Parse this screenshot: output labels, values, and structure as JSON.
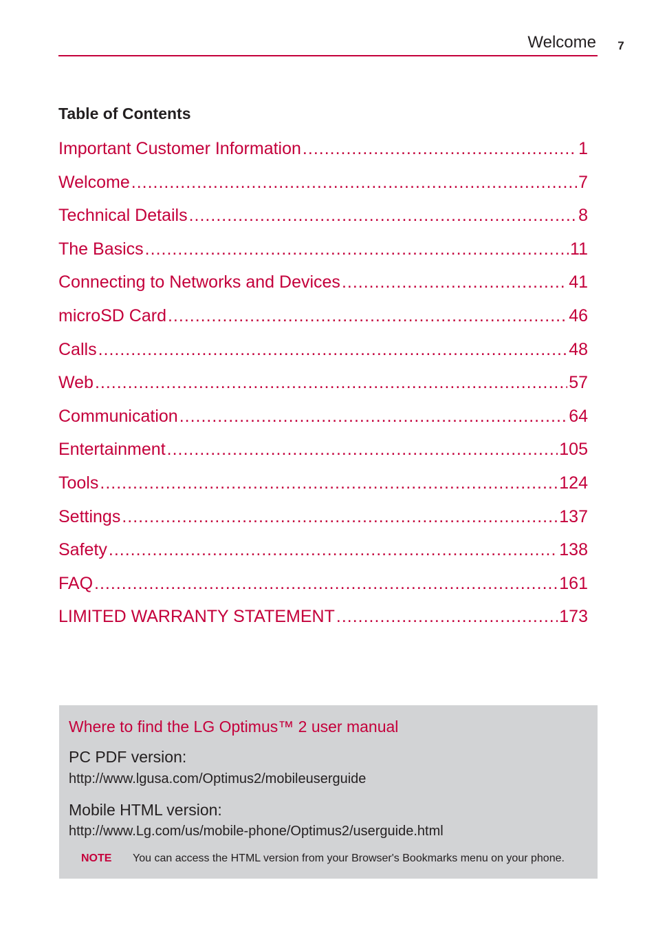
{
  "header": {
    "section_title": "Welcome",
    "page_number": "7",
    "accent_color": "#c4003b"
  },
  "toc": {
    "heading": "Table of Contents",
    "entries": [
      {
        "title": "Important Customer Information",
        "page": "1"
      },
      {
        "title": "Welcome",
        "page": "7"
      },
      {
        "title": "Technical Details",
        "page": "8"
      },
      {
        "title": "The Basics",
        "page": "11"
      },
      {
        "title": "Connecting to Networks and Devices",
        "page": "41"
      },
      {
        "title": "microSD Card",
        "page": "46"
      },
      {
        "title": "Calls",
        "page": "48"
      },
      {
        "title": "Web",
        "page": "57"
      },
      {
        "title": "Communication",
        "page": "64"
      },
      {
        "title": "Entertainment",
        "page": "105"
      },
      {
        "title": "Tools",
        "page": "124"
      },
      {
        "title": "Settings",
        "page": "137"
      },
      {
        "title": "Safety",
        "page": "138"
      },
      {
        "title": "FAQ",
        "page": "161"
      },
      {
        "title": "LIMITED WARRANTY STATEMENT",
        "page": "173"
      }
    ]
  },
  "manual_box": {
    "title": "Where to find the LG Optimus™ 2 user manual",
    "pc_label": "PC PDF version:",
    "pc_url": "http://www.lgusa.com/Optimus2/mobileuserguide",
    "mobile_label": "Mobile HTML version:",
    "mobile_url": "http://www.Lg.com/us/mobile-phone/Optimus2/userguide.html",
    "note_label": "NOTE",
    "note_text": "You can access the HTML version from your Browser's Bookmarks menu on your phone.",
    "background_color": "#d2d3d5"
  }
}
